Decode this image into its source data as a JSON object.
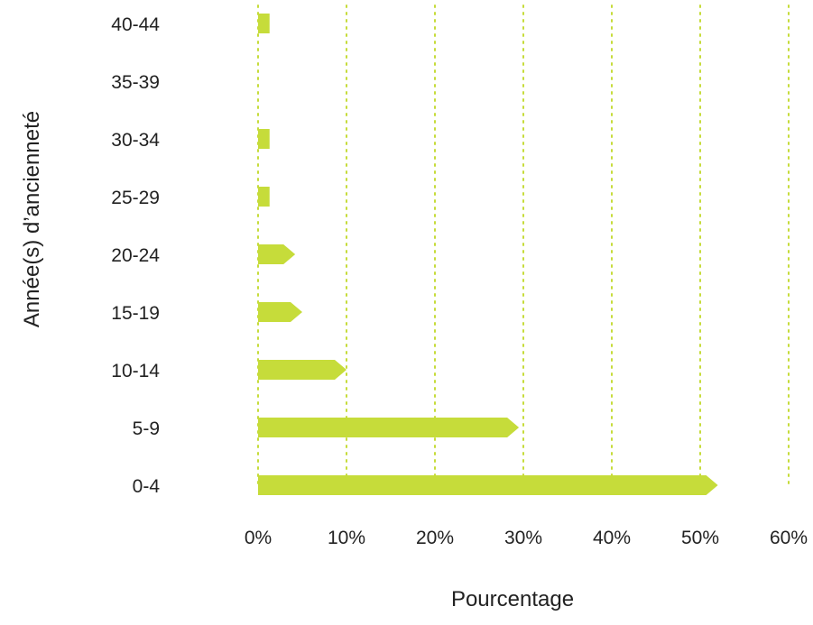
{
  "chart_data": {
    "type": "bar",
    "orientation": "horizontal",
    "categories": [
      "0-4",
      "5-9",
      "10-14",
      "15-19",
      "20-24",
      "25-29",
      "30-34",
      "35-39",
      "40-44"
    ],
    "values": [
      52,
      29.5,
      10,
      5,
      4.2,
      1.3,
      1.3,
      0,
      1.3
    ],
    "title": "",
    "xlabel": "Pourcentage",
    "ylabel": "Année(s) d’ancienneté",
    "xlim": [
      0,
      60
    ],
    "x_ticks": [
      "0%",
      "10%",
      "20%",
      "30%",
      "40%",
      "50%",
      "60%"
    ],
    "grid": "vertical dotted",
    "legend": "none",
    "colors": {
      "bar": "#c6dc3a",
      "grid": "#c6dc3a",
      "text": "#222222"
    }
  }
}
